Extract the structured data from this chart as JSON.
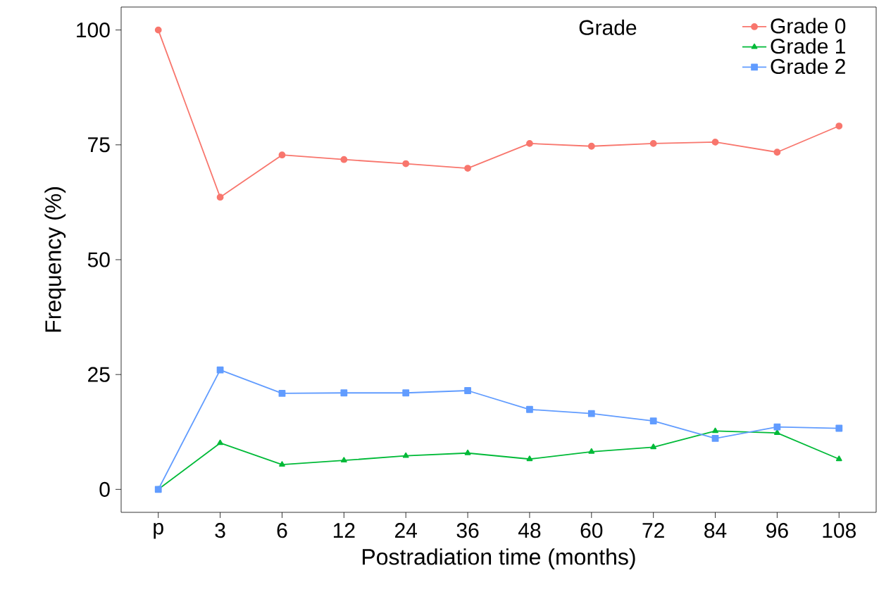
{
  "chart_data": {
    "type": "line",
    "xlabel": "Postradiation time (months)",
    "ylabel": "Frequency (%)",
    "legend_title": "Grade",
    "categories": [
      "p",
      "3",
      "6",
      "12",
      "24",
      "36",
      "48",
      "60",
      "72",
      "84",
      "96",
      "108"
    ],
    "series": [
      {
        "name": "Grade 0",
        "color": "#f8766d",
        "marker": "circle",
        "values": [
          100,
          63.6,
          72.8,
          71.8,
          70.9,
          69.9,
          75.3,
          74.7,
          75.3,
          75.6,
          73.4,
          79.1
        ]
      },
      {
        "name": "Grade 1",
        "color": "#00ba38",
        "marker": "triangle",
        "values": [
          0,
          10.1,
          5.4,
          6.3,
          7.3,
          7.9,
          6.6,
          8.2,
          9.2,
          12.7,
          12.3,
          6.6
        ]
      },
      {
        "name": "Grade 2",
        "color": "#619cff",
        "marker": "square",
        "values": [
          0,
          26.0,
          20.9,
          21.0,
          21.0,
          21.5,
          17.4,
          16.5,
          14.9,
          11.1,
          13.6,
          13.3
        ]
      }
    ],
    "ylim": [
      -5,
      105
    ],
    "yticks": [
      0,
      25,
      50,
      75,
      100
    ],
    "grid": false,
    "legend": "top right",
    "line_style": "solid"
  }
}
